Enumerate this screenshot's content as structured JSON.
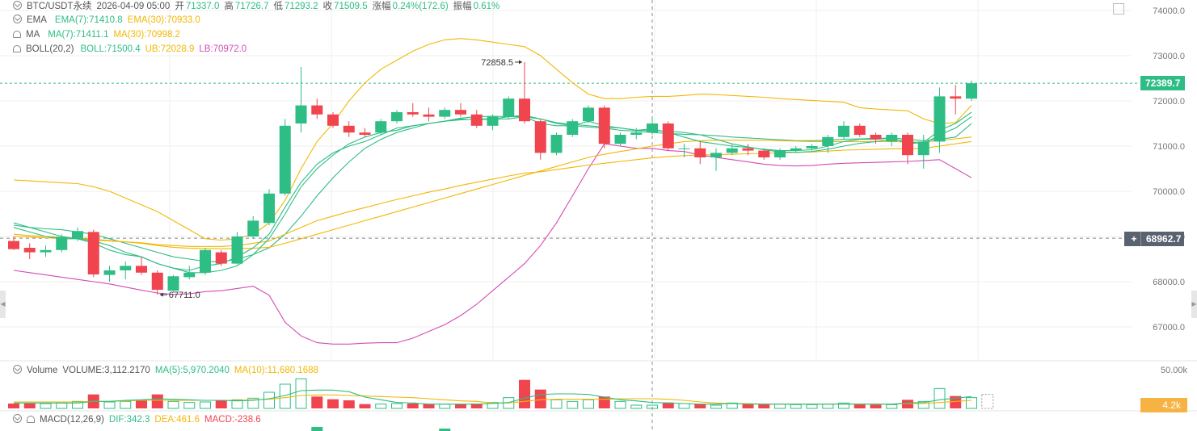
{
  "header": {
    "symbol": "BTC/USDT永续",
    "time": "2026-04-09 05:00",
    "open_label": "开",
    "open": "71337.0",
    "high_label": "高",
    "high": "71726.7",
    "low_label": "低",
    "low": "71293.2",
    "close_label": "收",
    "close": "71509.5",
    "change_label": "涨幅",
    "change": "0.24%(172.6)",
    "amp_label": "振幅",
    "amp": "0.61%"
  },
  "indicators": {
    "ema": {
      "name": "EMA",
      "a": "EMA(7):71410.8",
      "b": "EMA(30):70933.0"
    },
    "ma": {
      "name": "MA",
      "a": "MA(7):71411.1",
      "b": "MA(30):70998.2"
    },
    "boll": {
      "name": "BOLL(20,2)",
      "mid": "BOLL:71500.4",
      "ub": "UB:72028.9",
      "lb": "LB:70972.0"
    },
    "volume": {
      "name": "Volume",
      "v": "VOLUME:3,112.2170",
      "ma5": "MA(5):5,970.2040",
      "ma10": "MA(10):11,680.1688"
    },
    "macd": {
      "name": "MACD(12,26,9)",
      "dif": "DIF:342.3",
      "dea": "DEA:461.6",
      "macd": "MACD:-238.6"
    }
  },
  "price_axis": {
    "ticks": [
      74000,
      73000,
      72000,
      71000,
      70000,
      69000,
      68000,
      67000
    ],
    "tick_labels": [
      "74000.0",
      "73000.0",
      "72000.0",
      "71000.0",
      "70000.0",
      "69000.0",
      "68000.0",
      "67000.0"
    ],
    "last_price": "72389.7",
    "cursor_price": "68962.7"
  },
  "volume_axis": {
    "label": "50.00k",
    "cursor_value": "4.2k"
  },
  "annotations": {
    "high": "72858.5",
    "low": "67711.0"
  },
  "colors": {
    "up": "#2ebd85",
    "down": "#f0444e",
    "yellow": "#f2b705",
    "teal": "#2ebd85",
    "pink": "#d34bb5",
    "grid": "#efefef",
    "text": "#555555",
    "tag_dark": "#5a6270",
    "tag_orange": "#f6b343"
  },
  "chart_data": {
    "type": "candlestick",
    "ylim": [
      66500,
      74200
    ],
    "candles": [
      {
        "o": 68900,
        "h": 69000,
        "l": 68700,
        "c": 68720
      },
      {
        "o": 68750,
        "h": 68850,
        "l": 68500,
        "c": 68650
      },
      {
        "o": 68650,
        "h": 68800,
        "l": 68550,
        "c": 68700
      },
      {
        "o": 68700,
        "h": 69050,
        "l": 68650,
        "c": 68990
      },
      {
        "o": 68950,
        "h": 69200,
        "l": 68900,
        "c": 69120
      },
      {
        "o": 69100,
        "h": 69150,
        "l": 68100,
        "c": 68160
      },
      {
        "o": 68150,
        "h": 68350,
        "l": 68000,
        "c": 68250
      },
      {
        "o": 68250,
        "h": 68450,
        "l": 68050,
        "c": 68350
      },
      {
        "o": 68350,
        "h": 68550,
        "l": 68150,
        "c": 68200
      },
      {
        "o": 68200,
        "h": 68250,
        "l": 67711,
        "c": 67820
      },
      {
        "o": 67800,
        "h": 68150,
        "l": 67760,
        "c": 68120
      },
      {
        "o": 68100,
        "h": 68350,
        "l": 68050,
        "c": 68200
      },
      {
        "o": 68200,
        "h": 68750,
        "l": 68150,
        "c": 68700
      },
      {
        "o": 68650,
        "h": 68700,
        "l": 68350,
        "c": 68400
      },
      {
        "o": 68400,
        "h": 69100,
        "l": 68380,
        "c": 69000
      },
      {
        "o": 69000,
        "h": 69450,
        "l": 68950,
        "c": 69350
      },
      {
        "o": 69300,
        "h": 70050,
        "l": 69250,
        "c": 69950
      },
      {
        "o": 69950,
        "h": 71600,
        "l": 69900,
        "c": 71450
      },
      {
        "o": 71500,
        "h": 72750,
        "l": 71300,
        "c": 71900
      },
      {
        "o": 71900,
        "h": 72050,
        "l": 71600,
        "c": 71700
      },
      {
        "o": 71700,
        "h": 71750,
        "l": 71400,
        "c": 71450
      },
      {
        "o": 71450,
        "h": 71550,
        "l": 71200,
        "c": 71300
      },
      {
        "o": 71300,
        "h": 71400,
        "l": 71200,
        "c": 71250
      },
      {
        "o": 71300,
        "h": 71600,
        "l": 71250,
        "c": 71550
      },
      {
        "o": 71550,
        "h": 71800,
        "l": 71500,
        "c": 71750
      },
      {
        "o": 71750,
        "h": 71950,
        "l": 71650,
        "c": 71700
      },
      {
        "o": 71700,
        "h": 71850,
        "l": 71550,
        "c": 71650
      },
      {
        "o": 71650,
        "h": 71850,
        "l": 71600,
        "c": 71800
      },
      {
        "o": 71800,
        "h": 71950,
        "l": 71650,
        "c": 71700
      },
      {
        "o": 71700,
        "h": 71800,
        "l": 71400,
        "c": 71450
      },
      {
        "o": 71450,
        "h": 71700,
        "l": 71350,
        "c": 71650
      },
      {
        "o": 71650,
        "h": 72100,
        "l": 71600,
        "c": 72050
      },
      {
        "o": 72050,
        "h": 72858.5,
        "l": 71500,
        "c": 71550
      },
      {
        "o": 71550,
        "h": 71600,
        "l": 70700,
        "c": 70850
      },
      {
        "o": 70850,
        "h": 71300,
        "l": 70800,
        "c": 71250
      },
      {
        "o": 71250,
        "h": 71600,
        "l": 71200,
        "c": 71550
      },
      {
        "o": 71550,
        "h": 71900,
        "l": 71500,
        "c": 71850
      },
      {
        "o": 71850,
        "h": 71900,
        "l": 70950,
        "c": 71050
      },
      {
        "o": 71050,
        "h": 71300,
        "l": 71000,
        "c": 71250
      },
      {
        "o": 71250,
        "h": 71400,
        "l": 71150,
        "c": 71300
      },
      {
        "o": 71300,
        "h": 71650,
        "l": 71250,
        "c": 71500
      },
      {
        "o": 71500,
        "h": 71550,
        "l": 70900,
        "c": 70950
      },
      {
        "o": 70950,
        "h": 71050,
        "l": 70750,
        "c": 70950
      },
      {
        "o": 70950,
        "h": 71100,
        "l": 70600,
        "c": 70750
      },
      {
        "o": 70750,
        "h": 70950,
        "l": 70450,
        "c": 70850
      },
      {
        "o": 70850,
        "h": 71050,
        "l": 70800,
        "c": 70950
      },
      {
        "o": 70950,
        "h": 71050,
        "l": 70800,
        "c": 70900
      },
      {
        "o": 70900,
        "h": 70950,
        "l": 70700,
        "c": 70750
      },
      {
        "o": 70750,
        "h": 70950,
        "l": 70700,
        "c": 70900
      },
      {
        "o": 70900,
        "h": 71000,
        "l": 70850,
        "c": 70950
      },
      {
        "o": 70950,
        "h": 71050,
        "l": 70900,
        "c": 71000
      },
      {
        "o": 71000,
        "h": 71250,
        "l": 70850,
        "c": 71200
      },
      {
        "o": 71200,
        "h": 71550,
        "l": 71150,
        "c": 71450
      },
      {
        "o": 71450,
        "h": 71500,
        "l": 71200,
        "c": 71250
      },
      {
        "o": 71250,
        "h": 71300,
        "l": 71050,
        "c": 71150
      },
      {
        "o": 71100,
        "h": 71300,
        "l": 71000,
        "c": 71250
      },
      {
        "o": 71250,
        "h": 71300,
        "l": 70600,
        "c": 70800
      },
      {
        "o": 70800,
        "h": 71250,
        "l": 70500,
        "c": 71100
      },
      {
        "o": 71100,
        "h": 72300,
        "l": 70850,
        "c": 72100
      },
      {
        "o": 72100,
        "h": 72350,
        "l": 71700,
        "c": 72050
      },
      {
        "o": 72050,
        "h": 72450,
        "l": 72000,
        "c": 72389.7
      }
    ],
    "boll_ub": [
      70250,
      70230,
      70210,
      70190,
      70170,
      70100,
      70000,
      69850,
      69700,
      69550,
      69350,
      69150,
      68950,
      68920,
      68950,
      69050,
      69300,
      69800,
      70500,
      71100,
      71500,
      72000,
      72400,
      72700,
      72900,
      73100,
      73250,
      73350,
      73380,
      73350,
      73300,
      73250,
      73200,
      73000,
      72700,
      72400,
      72150,
      72050,
      72050,
      72080,
      72100,
      72100,
      72120,
      72150,
      72140,
      72120,
      72100,
      72080,
      72050,
      72030,
      72010,
      71990,
      71970,
      71850,
      71820,
      71800,
      71780,
      71600,
      71500,
      71520,
      71900
    ],
    "boll_mid": [
      69250,
      69200,
      69170,
      69150,
      69100,
      69050,
      68950,
      68850,
      68750,
      68650,
      68550,
      68500,
      68450,
      68440,
      68500,
      68600,
      68750,
      69050,
      69450,
      69900,
      70300,
      70650,
      70950,
      71150,
      71300,
      71400,
      71500,
      71550,
      71580,
      71600,
      71600,
      71600,
      71650,
      71600,
      71500,
      71450,
      71420,
      71400,
      71350,
      71330,
      71300,
      71280,
      71260,
      71250,
      71230,
      71200,
      71180,
      71160,
      71140,
      71120,
      71120,
      71130,
      71150,
      71160,
      71170,
      71180,
      71150,
      71120,
      71150,
      71200,
      71500
    ],
    "boll_lb": [
      68250,
      68200,
      68150,
      68100,
      68050,
      68000,
      67950,
      67880,
      67810,
      67750,
      67720,
      67730,
      67780,
      67800,
      67850,
      67900,
      67700,
      67100,
      66800,
      66650,
      66620,
      66620,
      66640,
      66650,
      66650,
      66750,
      66900,
      67050,
      67250,
      67500,
      67800,
      68100,
      68400,
      68800,
      69300,
      69900,
      70500,
      71050,
      71000,
      70950,
      70950,
      70900,
      70880,
      70800,
      70750,
      70700,
      70650,
      70600,
      70570,
      70560,
      70570,
      70600,
      70620,
      70630,
      70640,
      70650,
      70660,
      70680,
      70700,
      70500,
      70300
    ],
    "ema7": [
      69200,
      69100,
      69000,
      68950,
      68950,
      68850,
      68700,
      68600,
      68550,
      68400,
      68300,
      68250,
      68350,
      68400,
      68550,
      68750,
      69050,
      69650,
      70200,
      70600,
      70850,
      71000,
      71100,
      71250,
      71400,
      71450,
      71500,
      71550,
      71600,
      71580,
      71600,
      71650,
      71650,
      71500,
      71450,
      71450,
      71550,
      71450,
      71400,
      71350,
      71380,
      71300,
      71200,
      71100,
      71050,
      71000,
      70970,
      70930,
      70900,
      70900,
      70920,
      71000,
      71100,
      71150,
      71150,
      71180,
      71050,
      71080,
      71350,
      71500,
      71750
    ],
    "ma7": [
      69300,
      69200,
      69100,
      69000,
      68950,
      68900,
      68800,
      68650,
      68550,
      68400,
      68300,
      68200,
      68200,
      68250,
      68350,
      68600,
      68950,
      69500,
      70100,
      70500,
      70800,
      71050,
      71200,
      71300,
      71350,
      71450,
      71500,
      71550,
      71620,
      71650,
      71660,
      71650,
      71680,
      71600,
      71520,
      71480,
      71450,
      71420,
      71400,
      71350,
      71340,
      71330,
      71300,
      71250,
      71150,
      71050,
      70980,
      70920,
      70870,
      70860,
      70880,
      70930,
      71000,
      71060,
      71100,
      71150,
      71100,
      71050,
      71250,
      71400,
      71650
    ],
    "ema30": [
      69000,
      68990,
      68970,
      68960,
      68960,
      68940,
      68910,
      68880,
      68860,
      68820,
      68800,
      68780,
      68780,
      68780,
      68800,
      68850,
      68900,
      69050,
      69200,
      69350,
      69450,
      69550,
      69640,
      69730,
      69820,
      69900,
      69980,
      70050,
      70130,
      70200,
      70270,
      70340,
      70400,
      70430,
      70480,
      70530,
      70580,
      70620,
      70660,
      70700,
      70740,
      70770,
      70790,
      70800,
      70810,
      70820,
      70830,
      70840,
      70850,
      70860,
      70870,
      70890,
      70910,
      70920,
      70930,
      70940,
      70940,
      70950,
      71000,
      71050,
      71100
    ],
    "ma30": [
      69050,
      69020,
      69000,
      68980,
      68950,
      68920,
      68900,
      68880,
      68850,
      68800,
      68760,
      68740,
      68730,
      68730,
      68730,
      68740,
      68760,
      68850,
      68950,
      69050,
      69150,
      69250,
      69350,
      69450,
      69550,
      69650,
      69750,
      69850,
      69950,
      70050,
      70150,
      70250,
      70350,
      70450,
      70550,
      70650,
      70750,
      70820,
      70880,
      70940,
      71000,
      71050,
      71100,
      71120,
      71130,
      71130,
      71130,
      71130,
      71120,
      71110,
      71100,
      71100,
      71100,
      71100,
      71100,
      71100,
      71090,
      71090,
      71120,
      71160,
      71200
    ],
    "volume": [
      0.9,
      0.9,
      0.9,
      1.0,
      1.3,
      2.6,
      1.2,
      1.3,
      1.5,
      2.6,
      1.3,
      1.1,
      1.2,
      1.5,
      1.6,
      1.9,
      3.0,
      4.5,
      5.5,
      2.2,
      1.7,
      1.5,
      0.8,
      0.8,
      0.9,
      0.9,
      0.8,
      0.8,
      0.8,
      0.9,
      1.1,
      2.0,
      5.3,
      3.5,
      1.6,
      1.3,
      1.6,
      2.2,
      1.3,
      0.6,
      0.6,
      1.1,
      0.9,
      0.8,
      0.6,
      1.0,
      0.8,
      0.8,
      0.8,
      0.7,
      0.7,
      0.8,
      1.0,
      0.8,
      0.7,
      0.7,
      1.6,
      1.3,
      3.7,
      2.3,
      2.0
    ],
    "vol_ma5": [
      1.0,
      1.0,
      1.0,
      1.0,
      1.0,
      1.3,
      1.3,
      1.5,
      1.6,
      1.8,
      1.7,
      1.6,
      1.5,
      1.5,
      1.4,
      1.5,
      1.8,
      2.4,
      3.3,
      3.4,
      3.4,
      3.1,
      2.1,
      1.6,
      1.1,
      1.0,
      0.8,
      0.8,
      0.8,
      0.8,
      0.9,
      1.1,
      1.9,
      2.6,
      2.7,
      2.7,
      2.6,
      2.1,
      1.6,
      1.4,
      1.1,
      1.0,
      0.9,
      0.8,
      0.8,
      0.9,
      0.8,
      0.8,
      0.8,
      0.8,
      0.8,
      0.8,
      0.8,
      0.8,
      0.8,
      0.8,
      1.0,
      1.1,
      1.6,
      1.9,
      2.2
    ],
    "vol_ma10": [
      1.2,
      1.2,
      1.2,
      1.2,
      1.2,
      1.3,
      1.3,
      1.4,
      1.5,
      1.5,
      1.5,
      1.5,
      1.5,
      1.5,
      1.5,
      1.6,
      1.7,
      2.0,
      2.4,
      2.5,
      2.5,
      2.4,
      2.3,
      2.2,
      2.1,
      2.0,
      1.8,
      1.6,
      1.4,
      1.3,
      1.0,
      1.0,
      1.3,
      1.6,
      1.7,
      1.7,
      1.7,
      1.7,
      1.8,
      1.8,
      1.8,
      1.7,
      1.5,
      1.2,
      1.0,
      0.9,
      0.9,
      0.8,
      0.8,
      0.8,
      0.8,
      0.8,
      0.8,
      0.8,
      0.8,
      0.8,
      0.9,
      0.9,
      1.1,
      1.3,
      1.5
    ]
  }
}
